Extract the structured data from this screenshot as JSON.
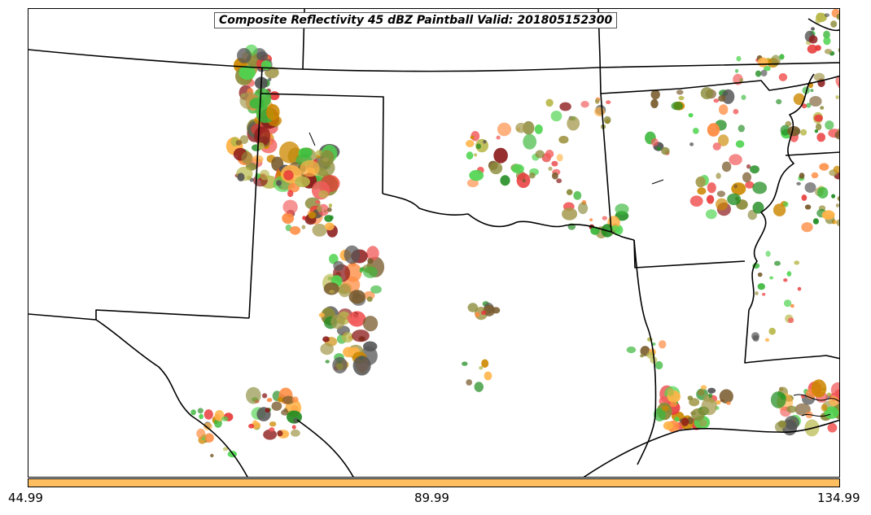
{
  "title": "Composite Reflectivity 45 dBZ Paintball Valid: 201805152300",
  "colorbar": {
    "color": "#ffbf60",
    "ticks": [
      "44.99",
      "89.99",
      "134.99"
    ]
  },
  "paintball_colors": [
    "#3cb83c",
    "#4fd44f",
    "#e83a3a",
    "#f25c5c",
    "#ffb347",
    "#ff8c42",
    "#a49a4e",
    "#8b8b3a",
    "#b8b84a",
    "#555555",
    "#8b1a1a",
    "#cc8800",
    "#7a5c2e",
    "#1f8b1f"
  ]
}
